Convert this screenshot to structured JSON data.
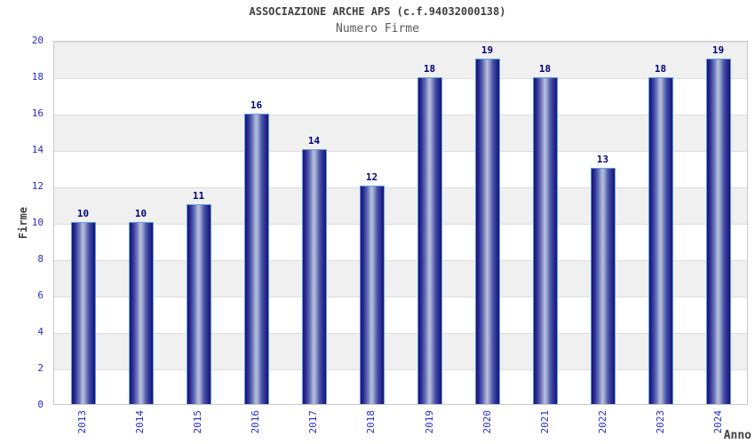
{
  "chart_data": {
    "type": "bar",
    "title": "ASSOCIAZIONE ARCHE APS (c.f.94032000138)",
    "subtitle": "Numero Firme",
    "xlabel": "Anno",
    "ylabel": "Firme",
    "categories": [
      "2013",
      "2014",
      "2015",
      "2016",
      "2017",
      "2018",
      "2019",
      "2020",
      "2021",
      "2022",
      "2023",
      "2024"
    ],
    "values": [
      10,
      10,
      11,
      16,
      14,
      12,
      18,
      19,
      18,
      13,
      18,
      19
    ],
    "ylim": [
      0,
      20
    ],
    "ytick_step": 2,
    "legend": "none",
    "grid": "horizontal-bands-alternating",
    "colors": {
      "background": "#ffffff",
      "title": "#404040",
      "subtitle": "#5a5a5a",
      "axis_title": "#404040",
      "tick_label": "#2a2ac8",
      "value_label": "#00007e",
      "bar_edge": "#5e9de0",
      "bar_dark": "#16166e",
      "bar_mid": "#2a2a96",
      "bar_light": "#b8c0de",
      "band_gray": "#f0f0f0",
      "band_white": "#ffffff",
      "gridline": "#dedede",
      "plot_border": "#c8c8c8"
    }
  }
}
